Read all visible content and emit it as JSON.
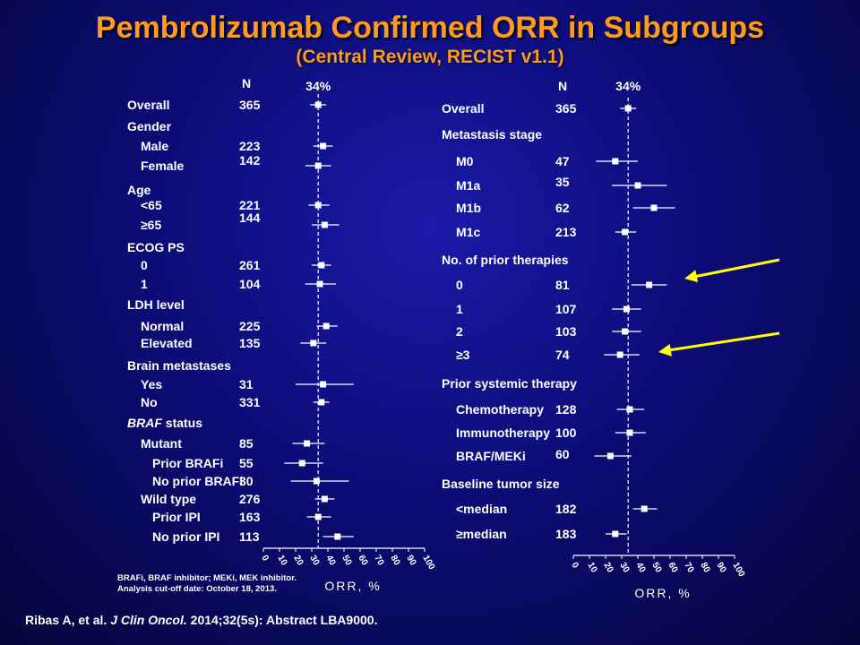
{
  "header": {
    "title": "Pembrolizumab Confirmed ORR in Subgroups",
    "subtitle": "(Central Review, RECIST v1.1)"
  },
  "chart_data": [
    {
      "type": "forest",
      "reference_line": {
        "value": 34,
        "label": "34%"
      },
      "n_header": "N",
      "xlabel": "ORR, %",
      "xlim": [
        0,
        100
      ],
      "xticks": [
        "0",
        "10",
        "20",
        "30",
        "40",
        "50",
        "60",
        "70",
        "80",
        "90",
        "100"
      ],
      "rows": [
        {
          "label": "Overall",
          "n": "365",
          "orr": 34,
          "ci": [
            29,
            39
          ]
        },
        {
          "label": "Gender",
          "header": true
        },
        {
          "label": "Male",
          "n": "223",
          "orr": 37,
          "ci": [
            31,
            43
          ]
        },
        {
          "label": "Female",
          "n": "142",
          "orr": 34,
          "ci": [
            26,
            42
          ]
        },
        {
          "label": "Age",
          "header": true
        },
        {
          "label": "<65",
          "n": "221",
          "orr": 34,
          "ci": [
            28,
            41
          ]
        },
        {
          "label": "≥65",
          "n": "144",
          "orr": 38,
          "ci": [
            30,
            47
          ]
        },
        {
          "label": "ECOG PS",
          "header": true
        },
        {
          "label": "0",
          "n": "261",
          "orr": 36,
          "ci": [
            30,
            42
          ]
        },
        {
          "label": "1",
          "n": "104",
          "orr": 35,
          "ci": [
            26,
            45
          ]
        },
        {
          "label": "LDH level",
          "header": true
        },
        {
          "label": "Normal",
          "n": "225",
          "orr": 39,
          "ci": [
            33,
            46
          ]
        },
        {
          "label": "Elevated",
          "n": "135",
          "orr": 31,
          "ci": [
            23,
            39
          ]
        },
        {
          "label": "Brain metastases",
          "header": true
        },
        {
          "label": "Yes",
          "n": "31",
          "orr": 37,
          "ci": [
            20,
            56
          ]
        },
        {
          "label": "No",
          "n": "331",
          "orr": 36,
          "ci": [
            31,
            41
          ]
        },
        {
          "label": "BRAF status",
          "header": true,
          "label_prefix_italic": "BRAF",
          "label_suffix": " status"
        },
        {
          "label": "Mutant",
          "n": "85",
          "orr": 27,
          "ci": [
            18,
            38
          ]
        },
        {
          "label": "Prior BRAFi",
          "n": "55",
          "orr": 24,
          "ci": [
            13,
            37
          ]
        },
        {
          "label": "No prior BRAFi",
          "n": "30",
          "orr": 33,
          "ci": [
            17,
            53
          ]
        },
        {
          "label": "Wild type",
          "n": "276",
          "orr": 38,
          "ci": [
            32,
            44
          ]
        },
        {
          "label": "Prior IPI",
          "n": "163",
          "orr": 34,
          "ci": [
            27,
            42
          ]
        },
        {
          "label": "No prior IPI",
          "n": "113",
          "orr": 46,
          "ci": [
            37,
            56
          ]
        }
      ]
    },
    {
      "type": "forest",
      "reference_line": {
        "value": 34,
        "label": "34%"
      },
      "n_header": "N",
      "xlabel": "ORR, %",
      "xlim": [
        0,
        100
      ],
      "xticks": [
        "0",
        "10",
        "20",
        "30",
        "40",
        "50",
        "60",
        "70",
        "80",
        "90",
        "100"
      ],
      "rows": [
        {
          "label": "Overall",
          "n": "365",
          "orr": 34,
          "ci": [
            29,
            39
          ]
        },
        {
          "label": "Metastasis stage",
          "header": true
        },
        {
          "label": "M0",
          "n": "47",
          "orr": 26,
          "ci": [
            14,
            40
          ]
        },
        {
          "label": "M1a",
          "n": "35",
          "orr": 40,
          "ci": [
            24,
            58
          ]
        },
        {
          "label": "M1b",
          "n": "62",
          "orr": 50,
          "ci": [
            37,
            63
          ]
        },
        {
          "label": "M1c",
          "n": "213",
          "orr": 32,
          "ci": [
            26,
            39
          ]
        },
        {
          "label": "No. of prior therapies",
          "header": true
        },
        {
          "label": "0",
          "n": "81",
          "orr": 47,
          "ci": [
            36,
            58
          ]
        },
        {
          "label": "1",
          "n": "107",
          "orr": 33,
          "ci": [
            24,
            42
          ]
        },
        {
          "label": "2",
          "n": "103",
          "orr": 32,
          "ci": [
            24,
            42
          ]
        },
        {
          "label": "≥3",
          "n": "74",
          "orr": 29,
          "ci": [
            19,
            41
          ]
        },
        {
          "label": "Prior systemic therapy",
          "header": true
        },
        {
          "label": "Chemotherapy",
          "n": "128",
          "orr": 35,
          "ci": [
            27,
            44
          ]
        },
        {
          "label": "Immunotherapy",
          "n": "100",
          "orr": 35,
          "ci": [
            26,
            45
          ]
        },
        {
          "label": "BRAF/MEKi",
          "n": "60",
          "orr": 23,
          "ci": [
            13,
            36
          ]
        },
        {
          "label": "Baseline tumor size",
          "header": true
        },
        {
          "label": "<median",
          "n": "182",
          "orr": 44,
          "ci": [
            37,
            52
          ]
        },
        {
          "label": "≥median",
          "n": "183",
          "orr": 26,
          "ci": [
            20,
            33
          ]
        }
      ]
    }
  ],
  "annotations": {
    "arrow_color": "#ffff00"
  },
  "footnote": {
    "line1": "BRAFi, BRAF  inhibitor; MEKi, MEK inhibitor.",
    "line2": "Analysis cut-off date: October 18, 2013."
  },
  "citation": {
    "authors": "Ribas A, et al.",
    "journal": "J Clin Oncol.",
    "details": "2014;32(5s): Abstract LBA9000."
  }
}
